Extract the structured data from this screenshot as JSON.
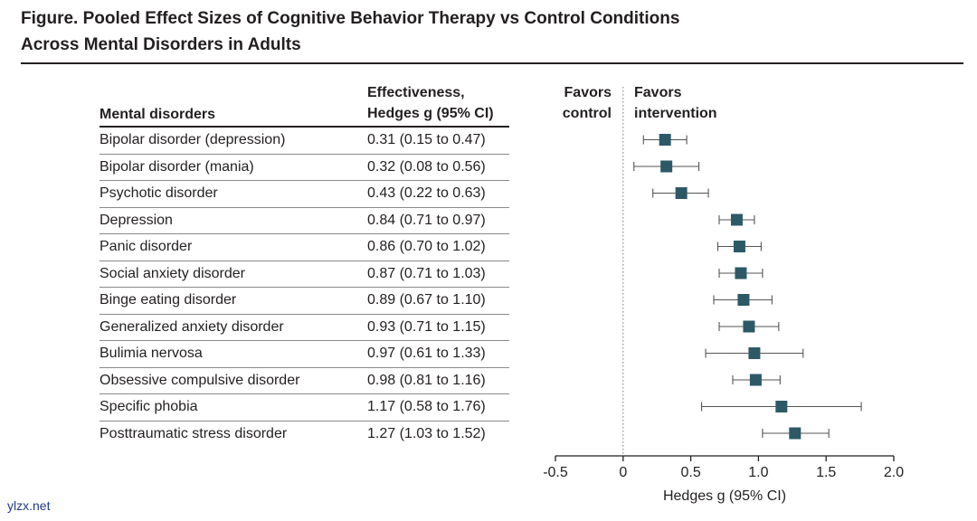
{
  "title_line1": "Figure. Pooled Effect Sizes of Cognitive Behavior Therapy vs Control Conditions",
  "title_line2": "Across Mental Disorders in Adults",
  "columns": {
    "disorder": "Mental disorders",
    "effect_line1": "Effectiveness,",
    "effect_line2": "Hedges g (95% CI)"
  },
  "favors": {
    "control_line1": "Favors",
    "control_line2": "control",
    "intervention_line1": "Favors",
    "intervention_line2": "intervention"
  },
  "watermark": "ylzx.net",
  "colors": {
    "marker": "#2d5966",
    "text": "#231f20"
  },
  "chart_data": {
    "type": "forest",
    "xlabel": "Hedges g (95% CI)",
    "xlim": [
      -0.5,
      2.0
    ],
    "xticks": [
      -0.5,
      0,
      0.5,
      1.0,
      1.5,
      2.0
    ],
    "xtick_labels": [
      "-0.5",
      "0",
      "0.5",
      "1.0",
      "1.5",
      "2.0"
    ],
    "reference_line": 0,
    "rows": [
      {
        "label": "Bipolar disorder (depression)",
        "g": 0.31,
        "lo": 0.15,
        "hi": 0.47,
        "text": "0.31 (0.15 to 0.47)"
      },
      {
        "label": "Bipolar disorder (mania)",
        "g": 0.32,
        "lo": 0.08,
        "hi": 0.56,
        "text": "0.32 (0.08 to 0.56)"
      },
      {
        "label": "Psychotic disorder",
        "g": 0.43,
        "lo": 0.22,
        "hi": 0.63,
        "text": "0.43 (0.22 to 0.63)"
      },
      {
        "label": "Depression",
        "g": 0.84,
        "lo": 0.71,
        "hi": 0.97,
        "text": "0.84 (0.71 to 0.97)"
      },
      {
        "label": "Panic disorder",
        "g": 0.86,
        "lo": 0.7,
        "hi": 1.02,
        "text": "0.86 (0.70 to 1.02)"
      },
      {
        "label": "Social anxiety disorder",
        "g": 0.87,
        "lo": 0.71,
        "hi": 1.03,
        "text": "0.87 (0.71 to 1.03)"
      },
      {
        "label": "Binge eating disorder",
        "g": 0.89,
        "lo": 0.67,
        "hi": 1.1,
        "text": "0.89 (0.67 to 1.10)"
      },
      {
        "label": "Generalized anxiety disorder",
        "g": 0.93,
        "lo": 0.71,
        "hi": 1.15,
        "text": "0.93 (0.71 to 1.15)"
      },
      {
        "label": "Bulimia nervosa",
        "g": 0.97,
        "lo": 0.61,
        "hi": 1.33,
        "text": "0.97 (0.61 to 1.33)"
      },
      {
        "label": "Obsessive compulsive disorder",
        "g": 0.98,
        "lo": 0.81,
        "hi": 1.16,
        "text": "0.98 (0.81 to 1.16)"
      },
      {
        "label": "Specific phobia",
        "g": 1.17,
        "lo": 0.58,
        "hi": 1.76,
        "text": "1.17 (0.58 to 1.76)"
      },
      {
        "label": "Posttraumatic stress disorder",
        "g": 1.27,
        "lo": 1.03,
        "hi": 1.52,
        "text": "1.27 (1.03 to 1.52)"
      }
    ]
  }
}
